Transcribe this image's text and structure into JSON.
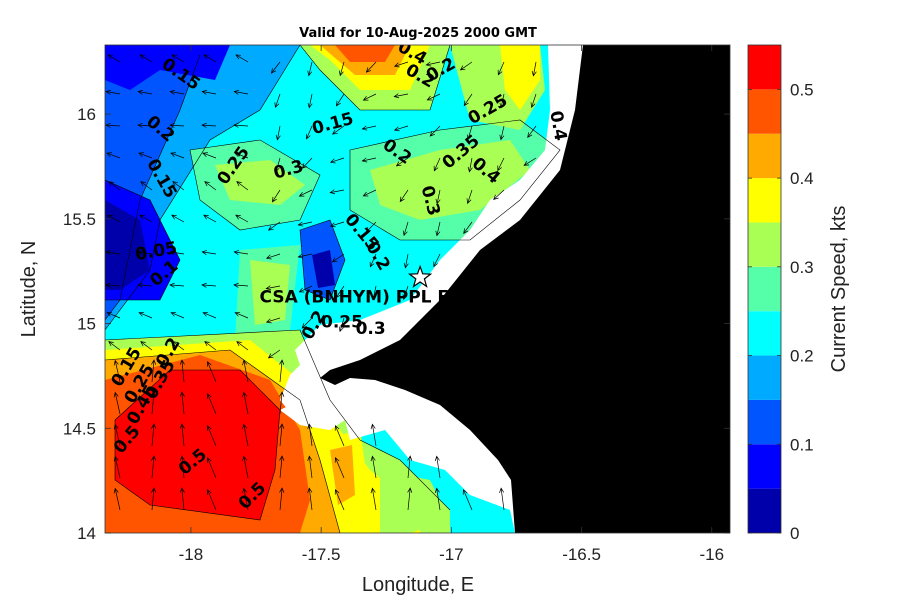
{
  "chart_data": {
    "type": "heatmap",
    "title": "Valid for 10-Aug-2025 2000 GMT",
    "xlabel": "Longitude, E",
    "ylabel": "Latitude, N",
    "xlim": [
      -18.33,
      -15.93
    ],
    "ylim": [
      14.0,
      16.33
    ],
    "xticks": [
      -18,
      -17.5,
      -17,
      -16.5,
      -16
    ],
    "xtick_labels": [
      "-18",
      "-17.5",
      "-17",
      "-16.5",
      "-16"
    ],
    "yticks": [
      14,
      14.5,
      15,
      15.5,
      16
    ],
    "ytick_labels": [
      "14",
      "14.5",
      "15",
      "15.5",
      "16"
    ],
    "colorbar": {
      "label": "Current Speed, kts",
      "range": [
        0,
        0.55
      ],
      "ticks": [
        0,
        0.1,
        0.2,
        0.3,
        0.4,
        0.5
      ],
      "tick_labels": [
        "0",
        "0.1",
        "0.2",
        "0.3",
        "0.4",
        "0.5"
      ],
      "levels": [
        0,
        0.05,
        0.1,
        0.15,
        0.2,
        0.25,
        0.3,
        0.35,
        0.4,
        0.45,
        0.5,
        0.55
      ],
      "colors": [
        "#0000aa",
        "#0000ff",
        "#0055ff",
        "#00aaff",
        "#00ffff",
        "#55ffaa",
        "#aaff55",
        "#ffff00",
        "#ffaa00",
        "#ff5500",
        "#ff0000"
      ]
    },
    "grid": false,
    "land_color": "#000000",
    "mask_color": "#ffffff",
    "station": {
      "label": "CSA (BNHYM) PPL EE",
      "lon": -17.12,
      "lat": 15.22
    },
    "contour_labels": [
      {
        "text": "0.15",
        "lon": -18.05,
        "lat": 16.17,
        "rot": 35
      },
      {
        "text": "0.4",
        "lon": -17.16,
        "lat": 16.27,
        "rot": 30
      },
      {
        "text": "0.2",
        "lon": -17.13,
        "lat": 16.16,
        "rot": 30
      },
      {
        "text": "0.2",
        "lon": -17.03,
        "lat": 16.19,
        "rot": -30
      },
      {
        "text": "0.25",
        "lon": -16.85,
        "lat": 16.0,
        "rot": -30
      },
      {
        "text": "0.4",
        "lon": -16.61,
        "lat": 15.94,
        "rot": 80
      },
      {
        "text": "0.15",
        "lon": -17.45,
        "lat": 15.93,
        "rot": -15
      },
      {
        "text": "0.2",
        "lon": -18.13,
        "lat": 15.91,
        "rot": 40
      },
      {
        "text": "0.2",
        "lon": -17.22,
        "lat": 15.8,
        "rot": 35
      },
      {
        "text": "0.25",
        "lon": -17.82,
        "lat": 15.74,
        "rot": -55
      },
      {
        "text": "0.3",
        "lon": -17.62,
        "lat": 15.71,
        "rot": -15
      },
      {
        "text": "0.35",
        "lon": -16.95,
        "lat": 15.8,
        "rot": -40
      },
      {
        "text": "0.4",
        "lon": -16.88,
        "lat": 15.71,
        "rot": 40
      },
      {
        "text": "0.15",
        "lon": -18.13,
        "lat": 15.68,
        "rot": 60
      },
      {
        "text": "0.3",
        "lon": -17.1,
        "lat": 15.58,
        "rot": 75
      },
      {
        "text": "0.15",
        "lon": -17.36,
        "lat": 15.42,
        "rot": 50
      },
      {
        "text": "0.2",
        "lon": -17.3,
        "lat": 15.31,
        "rot": 60
      },
      {
        "text": "0.05",
        "lon": -18.13,
        "lat": 15.32,
        "rot": -10
      },
      {
        "text": "0.1",
        "lon": -18.09,
        "lat": 15.22,
        "rot": -40
      },
      {
        "text": "0.2",
        "lon": -17.51,
        "lat": 14.98,
        "rot": -60
      },
      {
        "text": "0.25",
        "lon": -17.42,
        "lat": 14.98,
        "rot": 0
      },
      {
        "text": "0.3",
        "lon": -17.31,
        "lat": 14.95,
        "rot": 0
      },
      {
        "text": "0.15",
        "lon": -18.23,
        "lat": 14.78,
        "rot": -60
      },
      {
        "text": "0.25",
        "lon": -18.18,
        "lat": 14.7,
        "rot": -60
      },
      {
        "text": "0.35",
        "lon": -18.1,
        "lat": 14.72,
        "rot": -60
      },
      {
        "text": "0.2",
        "lon": -18.07,
        "lat": 14.85,
        "rot": -60
      },
      {
        "text": "0.45",
        "lon": -18.17,
        "lat": 14.6,
        "rot": -60
      },
      {
        "text": "0.5",
        "lon": -18.23,
        "lat": 14.43,
        "rot": -50
      },
      {
        "text": "0.5",
        "lon": -17.98,
        "lat": 14.32,
        "rot": -40
      },
      {
        "text": "0.5",
        "lon": -17.75,
        "lat": 14.16,
        "rot": -45
      }
    ]
  }
}
